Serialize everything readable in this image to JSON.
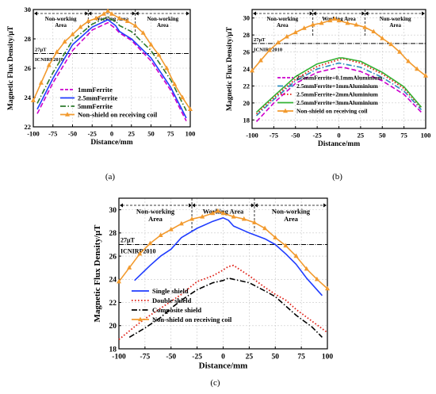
{
  "colors": {
    "orange": "#f29a2e",
    "magenta": "#cc00cc",
    "blue": "#1f3cff",
    "green": "#2d7a2d",
    "teal": "#2b8cbe",
    "lime": "#33b233",
    "red": "#e0251b",
    "black": "#000000",
    "ref_line": "#333333"
  },
  "chart_data": [
    {
      "type": "line",
      "panel_label": "(a)",
      "xlabel": "Distance/mm",
      "ylabel": "Magnetic Flux Density/μT",
      "xlim": [
        -100,
        100
      ],
      "ylim": [
        22,
        30
      ],
      "xticks": [
        "-100",
        "-75",
        "-50",
        "-25",
        "0",
        "25",
        "50",
        "75",
        "100"
      ],
      "yticks": [
        "22",
        "24",
        "26",
        "28",
        "30"
      ],
      "areas": {
        "left": "Non-working Area",
        "middle": "Working Area",
        "right": "Non-working Area"
      },
      "reference": {
        "value": 27,
        "label_top": "27μT",
        "label_bottom": "ICNIRP2010"
      },
      "legend_position": "lower-center",
      "series": [
        {
          "name": "1mmFerrite",
          "style": "dashed",
          "color": "magenta",
          "x": [
            -95,
            -75,
            -50,
            -25,
            -5,
            0,
            5,
            10,
            25,
            50,
            75,
            95
          ],
          "y": [
            22.9,
            25.0,
            27.2,
            28.6,
            29.1,
            28.9,
            28.7,
            28.4,
            27.9,
            26.5,
            24.5,
            22.4
          ]
        },
        {
          "name": "2.5mmFerrite",
          "style": "solid",
          "color": "blue",
          "x": [
            -95,
            -75,
            -50,
            -25,
            -5,
            0,
            5,
            10,
            25,
            50,
            75,
            95
          ],
          "y": [
            23.2,
            25.3,
            27.6,
            28.8,
            29.3,
            29.1,
            28.9,
            28.5,
            28.0,
            26.7,
            24.7,
            22.6
          ]
        },
        {
          "name": "5mmFerrite",
          "style": "dashdot",
          "color": "green",
          "x": [
            -95,
            -75,
            -50,
            -25,
            -5,
            0,
            5,
            10,
            25,
            50,
            75,
            95
          ],
          "y": [
            23.6,
            25.7,
            27.9,
            29.0,
            29.5,
            29.3,
            29.2,
            28.9,
            28.5,
            27.2,
            25.2,
            23.1
          ]
        },
        {
          "name": "Non-shield on receiving coil",
          "style": "solid-triangle",
          "color": "orange",
          "x": [
            -100,
            -90,
            -80,
            -70,
            -60,
            -50,
            -40,
            -30,
            -20,
            -10,
            -5,
            0,
            10,
            20,
            30,
            40,
            50,
            60,
            70,
            80,
            90,
            100
          ],
          "y": [
            23.8,
            25.0,
            26.2,
            27.1,
            27.8,
            28.3,
            28.8,
            29.2,
            29.4,
            29.7,
            29.9,
            29.7,
            29.4,
            29.2,
            28.9,
            28.4,
            27.6,
            26.9,
            26.0,
            24.9,
            24.0,
            23.2
          ]
        }
      ]
    },
    {
      "type": "line",
      "panel_label": "(b)",
      "xlabel": "Distance/mm",
      "ylabel": "Magnetic Flux Density/μT",
      "xlim": [
        -100,
        100
      ],
      "ylim": [
        17,
        31
      ],
      "xticks": [
        "-100",
        "-75",
        "-50",
        "-25",
        "0",
        "25",
        "50",
        "75",
        "100"
      ],
      "yticks": [
        "18",
        "20",
        "22",
        "24",
        "26",
        "28",
        "30"
      ],
      "areas": {
        "left": "Non-working Area",
        "middle": "Working Area",
        "right": "Non-working Area"
      },
      "reference": {
        "value": 27,
        "label_top": "27μT",
        "label_bottom": "ICNIRP2010"
      },
      "legend_position": "center",
      "series": [
        {
          "name": "2.5mmFerrite+0.1mmAluminium",
          "style": "dashed",
          "color": "magenta",
          "x": [
            -95,
            -75,
            -50,
            -25,
            0,
            5,
            25,
            50,
            75,
            95
          ],
          "y": [
            17.8,
            20.0,
            22.3,
            23.6,
            24.2,
            24.2,
            23.7,
            22.6,
            21.0,
            18.9
          ]
        },
        {
          "name": "2.5mmFerrite+1mmAluminium",
          "style": "dashdot",
          "color": "teal",
          "x": [
            -95,
            -75,
            -50,
            -25,
            0,
            5,
            25,
            50,
            75,
            95
          ],
          "y": [
            18.5,
            20.4,
            22.6,
            24.0,
            24.7,
            24.6,
            24.2,
            23.0,
            21.4,
            19.2
          ]
        },
        {
          "name": "2.5mmFerrite+2mmAluminium",
          "style": "dotted",
          "color": "red",
          "x": [
            -95,
            -75,
            -50,
            -25,
            0,
            5,
            25,
            50,
            75,
            95
          ],
          "y": [
            18.7,
            20.6,
            22.8,
            24.3,
            25.1,
            25.2,
            24.7,
            23.4,
            21.7,
            19.4
          ]
        },
        {
          "name": "2.5mmFerrite+3mmAluminium",
          "style": "solid",
          "color": "lime",
          "x": [
            -95,
            -75,
            -50,
            -25,
            0,
            5,
            25,
            50,
            75,
            95
          ],
          "y": [
            18.9,
            20.8,
            23.1,
            24.6,
            25.3,
            25.3,
            24.9,
            23.6,
            21.9,
            19.5
          ]
        },
        {
          "name": "Non-shield on receiving coil",
          "style": "solid-triangle",
          "color": "orange",
          "x": [
            -100,
            -90,
            -80,
            -70,
            -60,
            -50,
            -40,
            -30,
            -20,
            -10,
            -5,
            0,
            10,
            20,
            30,
            40,
            50,
            60,
            70,
            80,
            90,
            100
          ],
          "y": [
            23.8,
            25.0,
            26.2,
            27.1,
            27.8,
            28.3,
            28.8,
            29.2,
            29.4,
            29.7,
            29.9,
            29.7,
            29.4,
            29.2,
            28.9,
            28.4,
            27.6,
            26.9,
            26.0,
            24.9,
            24.0,
            23.2
          ]
        }
      ]
    },
    {
      "type": "line",
      "panel_label": "(c)",
      "xlabel": "Distance/mm",
      "ylabel": "Magnetic Flux Density/μT",
      "xlim": [
        -100,
        100
      ],
      "ylim": [
        18,
        31
      ],
      "xticks": [
        "-100",
        "-75",
        "-50",
        "-25",
        "0",
        "25",
        "50",
        "75",
        "100"
      ],
      "yticks": [
        "18",
        "20",
        "22",
        "24",
        "26",
        "28",
        "30"
      ],
      "areas": {
        "left": "Non-working Area",
        "middle": "Working Area",
        "right": "Non-working Area"
      },
      "reference": {
        "value": 27,
        "label_top": "27μT",
        "label_bottom": "ICNIRP2010"
      },
      "legend_position": "lower-left",
      "series": [
        {
          "name": "Single shield",
          "style": "solid",
          "color": "blue",
          "x": [
            -85,
            -70,
            -60,
            -50,
            -40,
            -25,
            -10,
            0,
            5,
            10,
            25,
            40,
            50,
            60,
            70,
            80,
            95
          ],
          "y": [
            23.9,
            25.2,
            26.0,
            26.6,
            27.6,
            28.4,
            29.0,
            29.3,
            29.1,
            28.6,
            28.0,
            27.5,
            27.0,
            26.2,
            25.3,
            24.1,
            22.6
          ]
        },
        {
          "name": "Double shield",
          "style": "dotted",
          "color": "red",
          "x": [
            -100,
            -85,
            -75,
            -60,
            -50,
            -40,
            -25,
            -10,
            0,
            5,
            10,
            25,
            40,
            50,
            60,
            70,
            85,
            100
          ],
          "y": [
            18.8,
            19.9,
            20.6,
            21.5,
            22.1,
            22.7,
            23.8,
            24.3,
            24.8,
            25.1,
            25.2,
            24.3,
            23.3,
            22.7,
            22.2,
            21.4,
            20.4,
            19.4
          ]
        },
        {
          "name": "Composite shield",
          "style": "dashdot",
          "color": "black",
          "x": [
            -90,
            -75,
            -60,
            -50,
            -40,
            -25,
            -10,
            0,
            5,
            10,
            25,
            40,
            50,
            60,
            70,
            85,
            95
          ],
          "y": [
            19.0,
            19.8,
            20.7,
            21.5,
            22.2,
            23.1,
            23.7,
            23.9,
            24.1,
            24.0,
            23.7,
            23.0,
            22.5,
            21.7,
            20.9,
            19.9,
            19.0
          ]
        },
        {
          "name": "Non-shield on receiving coil",
          "style": "solid-triangle",
          "color": "orange",
          "x": [
            -100,
            -90,
            -80,
            -70,
            -60,
            -50,
            -40,
            -30,
            -20,
            -10,
            -5,
            0,
            10,
            20,
            30,
            40,
            50,
            60,
            70,
            80,
            90,
            100
          ],
          "y": [
            23.8,
            25.0,
            26.2,
            27.1,
            27.8,
            28.3,
            28.8,
            29.2,
            29.4,
            29.7,
            29.9,
            29.7,
            29.4,
            29.2,
            28.9,
            28.4,
            27.6,
            26.9,
            26.0,
            24.9,
            24.0,
            23.2
          ]
        }
      ]
    }
  ]
}
